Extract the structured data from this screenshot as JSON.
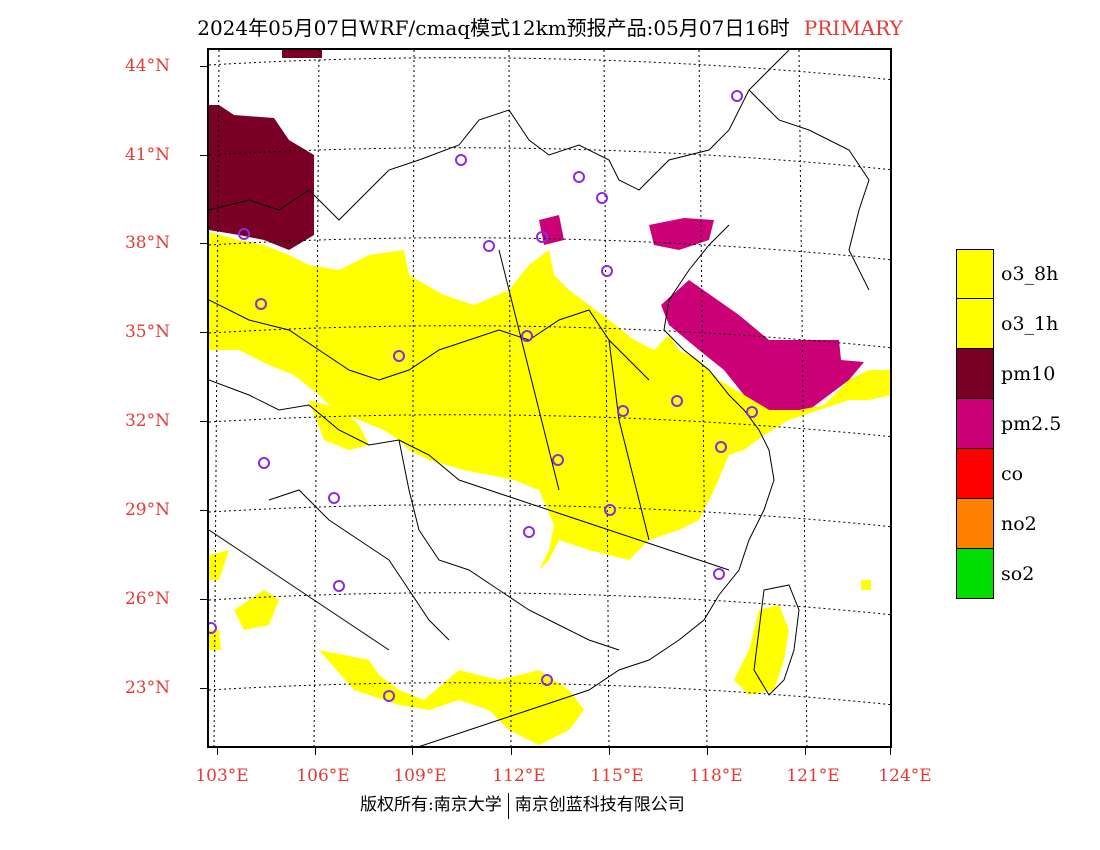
{
  "title": {
    "main": "2024年05月07日WRF/cmaq模式12km预报产品:05月07日16时",
    "tag": "PRIMARY"
  },
  "axes": {
    "lat_labels": [
      "44°N",
      "41°N",
      "38°N",
      "35°N",
      "32°N",
      "29°N",
      "26°N",
      "23°N"
    ],
    "lon_labels": [
      "103°E",
      "106°E",
      "109°E",
      "112°E",
      "115°E",
      "118°E",
      "121°E",
      "124°E"
    ]
  },
  "legend": [
    {
      "label": "o3_8h",
      "color": "#ffff00"
    },
    {
      "label": "o3_1h",
      "color": "#ffff00"
    },
    {
      "label": "pm10",
      "color": "#7a0028"
    },
    {
      "label": "pm2.5",
      "color": "#cc0077"
    },
    {
      "label": "co",
      "color": "#ff0000"
    },
    {
      "label": "no2",
      "color": "#ff8000"
    },
    {
      "label": "so2",
      "color": "#00dd00"
    }
  ],
  "copyright": {
    "left": "版权所有:南京大学",
    "right": "南京创蓝科技有限公司"
  },
  "colors": {
    "accent": "#e53935",
    "station_marker": "#8a2be2"
  }
}
